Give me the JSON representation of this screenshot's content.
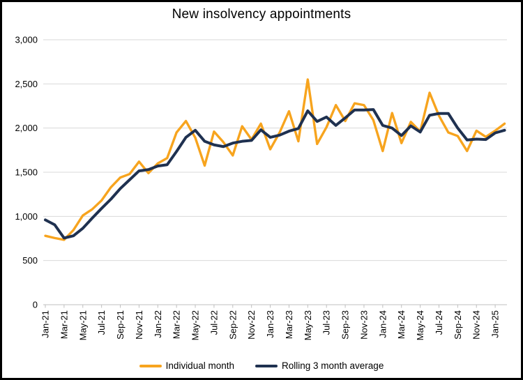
{
  "page": {
    "background": "#ffffff",
    "frame_color": "#000000"
  },
  "chart_data": {
    "type": "line",
    "title": "New insolvency appointments",
    "x": [
      "Jan-21",
      "Feb-21",
      "Mar-21",
      "Apr-21",
      "May-21",
      "Jun-21",
      "Jul-21",
      "Aug-21",
      "Sep-21",
      "Oct-21",
      "Nov-21",
      "Dec-21",
      "Jan-22",
      "Feb-22",
      "Mar-22",
      "Apr-22",
      "May-22",
      "Jun-22",
      "Jul-22",
      "Aug-22",
      "Sep-22",
      "Oct-22",
      "Nov-22",
      "Dec-22",
      "Jan-23",
      "Feb-23",
      "Mar-23",
      "Apr-23",
      "May-23",
      "Jun-23",
      "Jul-23",
      "Aug-23",
      "Sep-23",
      "Oct-23",
      "Nov-23",
      "Dec-23",
      "Jan-24",
      "Feb-24",
      "Mar-24",
      "Apr-24",
      "May-24",
      "Jun-24",
      "Jul-24",
      "Aug-24",
      "Sep-24",
      "Oct-24",
      "Nov-24",
      "Dec-24",
      "Jan-25",
      "Feb-25"
    ],
    "x_tick_labels": [
      "Jan-21",
      "Mar-21",
      "May-21",
      "Jul-21",
      "Sep-21",
      "Nov-21",
      "Jan-22",
      "Mar-22",
      "May-22",
      "Jul-22",
      "Sep-22",
      "Nov-22",
      "Jan-23",
      "Mar-23",
      "May-23",
      "Jul-23",
      "Sep-23",
      "Nov-23",
      "Jan-24",
      "Mar-24",
      "May-24",
      "Jul-24",
      "Sep-24",
      "Nov-24",
      "Jan-25"
    ],
    "series": [
      {
        "name": "Individual month",
        "color": "#F7A41E",
        "values": [
          780,
          755,
          735,
          845,
          1010,
          1080,
          1180,
          1330,
          1440,
          1480,
          1620,
          1490,
          1600,
          1660,
          1950,
          2080,
          1890,
          1575,
          1960,
          1840,
          1690,
          2020,
          1870,
          2050,
          1760,
          1950,
          2190,
          1850,
          2550,
          1820,
          2010,
          2260,
          2080,
          2280,
          2260,
          2090,
          1740,
          2170,
          1830,
          2070,
          1960,
          2400,
          2140,
          1950,
          1910,
          1740,
          1970,
          1900,
          1970,
          2050
        ]
      },
      {
        "name": "Rolling 3 month average",
        "color": "#1F3150",
        "values": [
          960,
          905,
          755,
          780,
          865,
          980,
          1090,
          1195,
          1315,
          1415,
          1515,
          1530,
          1570,
          1585,
          1735,
          1895,
          1975,
          1850,
          1810,
          1790,
          1830,
          1850,
          1860,
          1980,
          1895,
          1920,
          1965,
          1995,
          2195,
          2075,
          2125,
          2030,
          2115,
          2205,
          2205,
          2210,
          2030,
          2000,
          1915,
          2025,
          1955,
          2145,
          2165,
          2165,
          2000,
          1865,
          1875,
          1870,
          1945,
          1975
        ]
      }
    ],
    "ylim": [
      0,
      3000
    ],
    "y_ticks": [
      {
        "value": 0,
        "label": "0"
      },
      {
        "value": 500,
        "label": "500"
      },
      {
        "value": 1000,
        "label": "1,000"
      },
      {
        "value": 1500,
        "label": "1,500"
      },
      {
        "value": 2000,
        "label": "2,000"
      },
      {
        "value": 2500,
        "label": "2,500"
      },
      {
        "value": 3000,
        "label": "3,000"
      }
    ],
    "grid": "horizontal",
    "gridline_color": "#D9D9D9",
    "axis_color": "#BFBFBF",
    "legend_position": "bottom"
  }
}
